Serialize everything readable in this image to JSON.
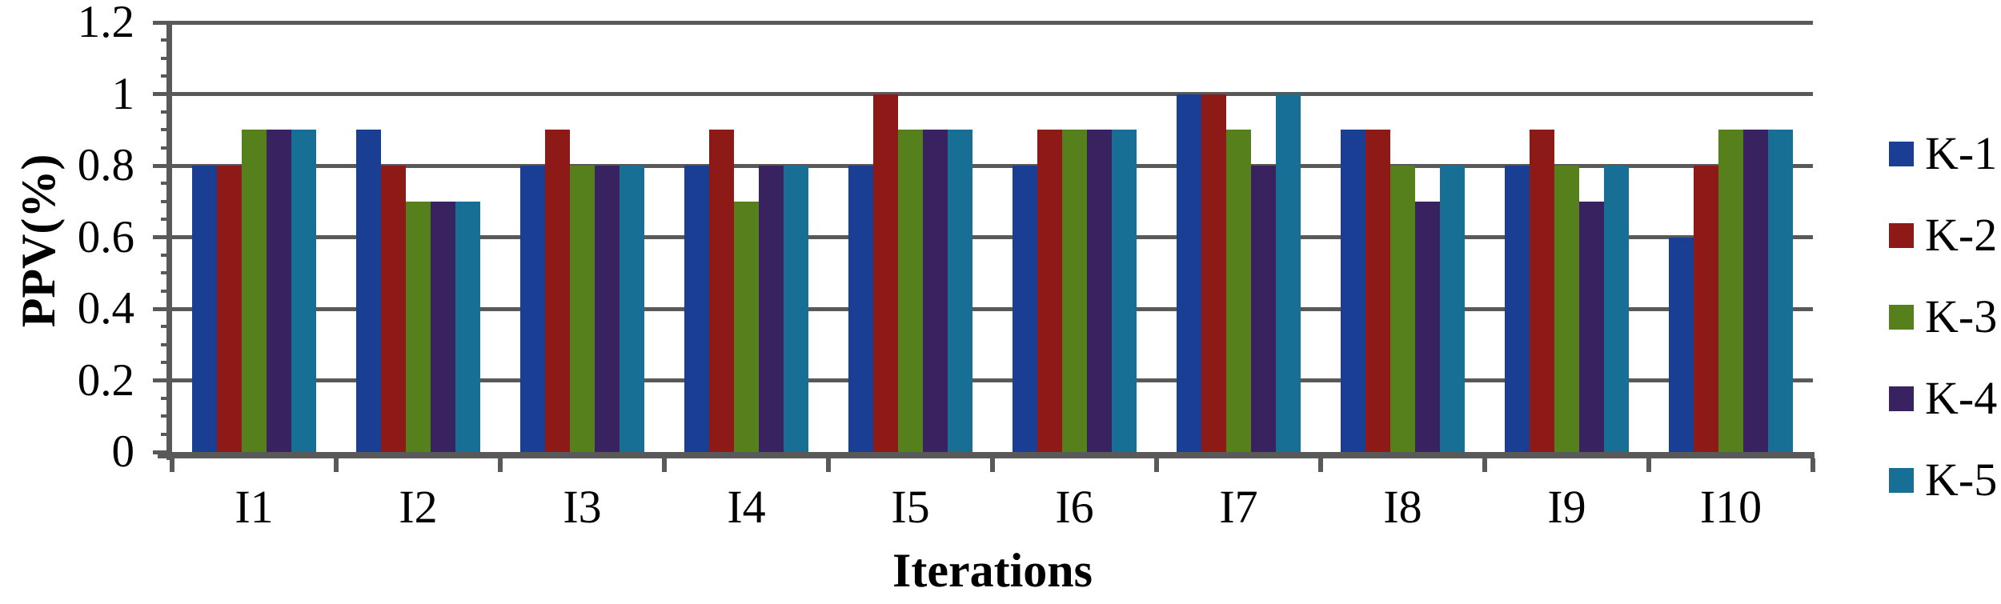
{
  "chart_data": {
    "type": "bar",
    "title": "",
    "xlabel": "Iterations",
    "ylabel": "PPV(%)",
    "categories": [
      "I1",
      "I2",
      "I3",
      "I4",
      "I5",
      "I6",
      "I7",
      "I8",
      "I9",
      "I10"
    ],
    "series": [
      {
        "name": "K-1",
        "color": "#1A3E94",
        "values": [
          0.8,
          0.9,
          0.8,
          0.8,
          0.8,
          0.8,
          1,
          0.9,
          0.8,
          0.6
        ]
      },
      {
        "name": "K-2",
        "color": "#8E1A18",
        "values": [
          0.8,
          0.8,
          0.9,
          0.9,
          1,
          0.9,
          1,
          0.9,
          0.9,
          0.8
        ]
      },
      {
        "name": "K-3",
        "color": "#55801C",
        "values": [
          0.9,
          0.7,
          0.8,
          0.7,
          0.9,
          0.9,
          0.9,
          0.8,
          0.8,
          0.9
        ]
      },
      {
        "name": "K-4",
        "color": "#392260",
        "values": [
          0.9,
          0.7,
          0.8,
          0.8,
          0.9,
          0.9,
          0.8,
          0.7,
          0.7,
          0.9
        ]
      },
      {
        "name": "K-5",
        "color": "#186F95",
        "values": [
          0.9,
          0.7,
          0.8,
          0.8,
          0.9,
          0.9,
          1,
          0.8,
          0.8,
          0.9
        ]
      }
    ],
    "ylim": [
      0,
      1.2
    ],
    "yticks": [
      {
        "v": 0,
        "label": "0"
      },
      {
        "v": 0.2,
        "label": "0.2"
      },
      {
        "v": 0.4,
        "label": "0.4"
      },
      {
        "v": 0.6,
        "label": "0.6"
      },
      {
        "v": 0.8,
        "label": "0.8"
      },
      {
        "v": 1,
        "label": "1"
      },
      {
        "v": 1.2,
        "label": "1.2"
      }
    ],
    "minor_tick_step": 0.05,
    "grid": true,
    "legend_position": "right",
    "axis_color": "#595959",
    "background": "#FFFFFF",
    "text_color": "#000000"
  }
}
